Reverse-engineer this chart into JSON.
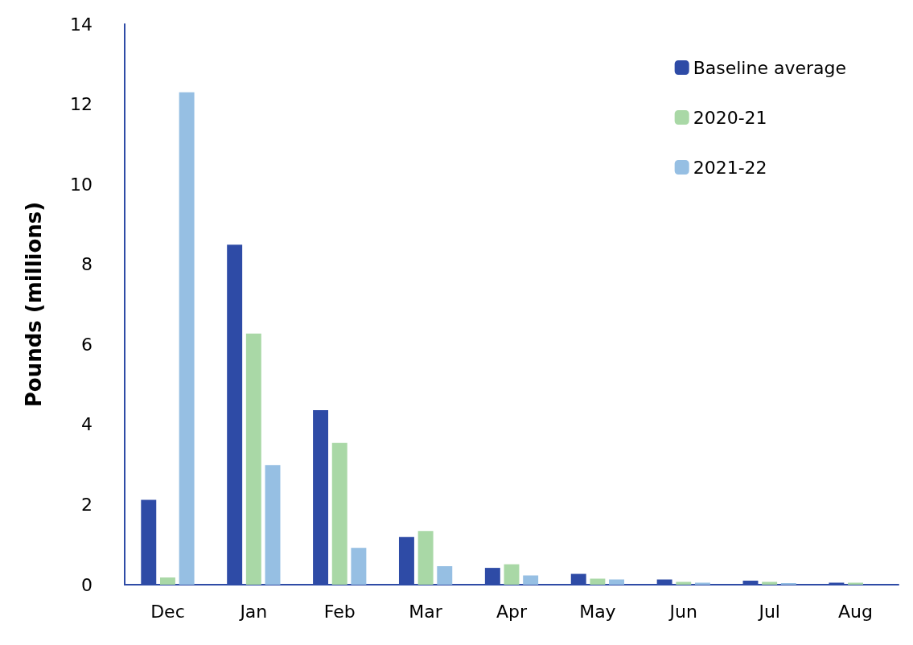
{
  "chart_data": {
    "type": "bar",
    "ylabel": "Pounds (millions)",
    "categories": [
      "Dec",
      "Jan",
      "Feb",
      "Mar",
      "Apr",
      "May",
      "Jun",
      "Jul",
      "Aug"
    ],
    "series": [
      {
        "name": "Baseline average",
        "color": "#2e4ba6",
        "values": [
          2.12,
          8.49,
          4.36,
          1.19,
          0.42,
          0.27,
          0.13,
          0.1,
          0.05
        ]
      },
      {
        "name": "2020-21",
        "color": "#a9d8a6",
        "values": [
          0.18,
          6.27,
          3.54,
          1.34,
          0.51,
          0.15,
          0.07,
          0.07,
          0.05
        ]
      },
      {
        "name": "2021-22",
        "color": "#96bfe3",
        "values": [
          12.3,
          2.99,
          0.92,
          0.46,
          0.23,
          0.13,
          0.05,
          0.04,
          null
        ]
      }
    ],
    "ylim": [
      0,
      14
    ],
    "yticks": [
      0,
      2,
      4,
      6,
      8,
      10,
      12,
      14
    ],
    "grid": false,
    "legend": "top right"
  }
}
